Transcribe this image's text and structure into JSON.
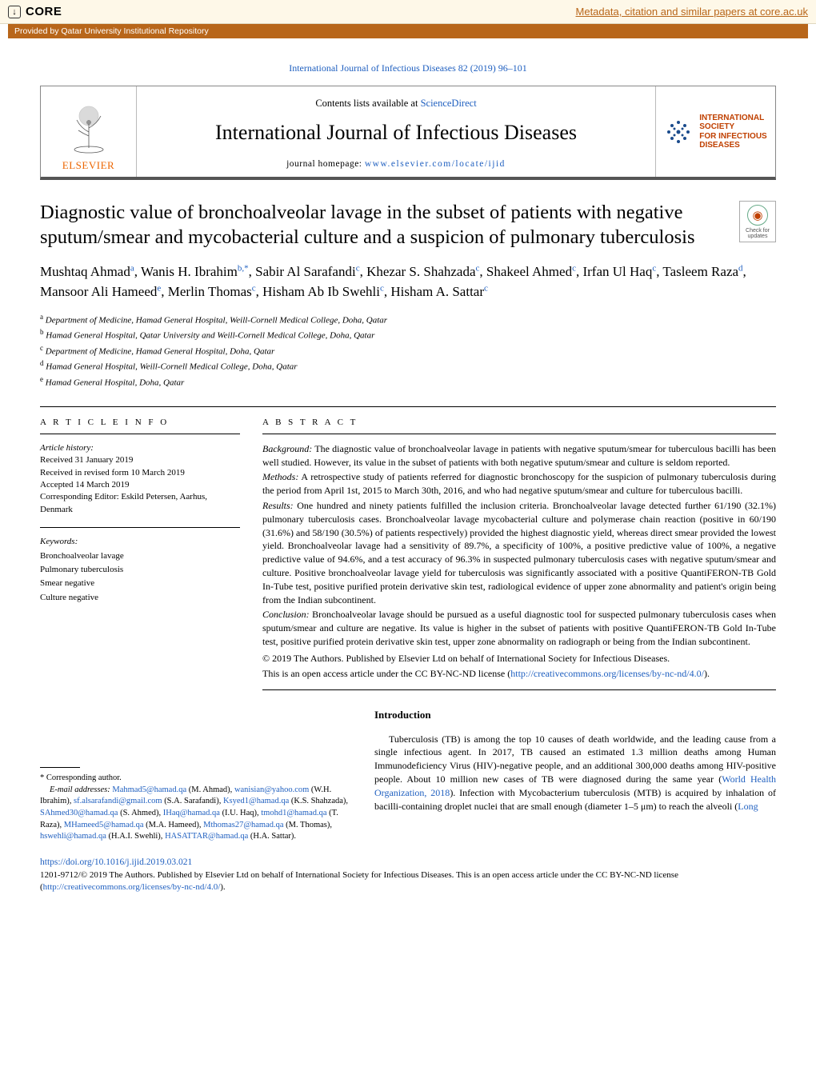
{
  "core": {
    "brand": "CORE",
    "link_text": "Metadata, citation and similar papers at core.ac.uk",
    "provided_by": "Provided by Qatar University Institutional Repository"
  },
  "journal_ref": "International Journal of Infectious Diseases 82 (2019) 96–101",
  "masthead": {
    "contents_prefix": "Contents lists available at ",
    "sciencedirect": "ScienceDirect",
    "journal_title": "International Journal of Infectious Diseases",
    "homepage_prefix": "journal homepage: ",
    "homepage_url": "www.elsevier.com/locate/ijid",
    "elsevier": "ELSEVIER",
    "society_lines": [
      "INTERNATIONAL",
      "SOCIETY",
      "FOR INFECTIOUS",
      "DISEASES"
    ]
  },
  "updates_badge": {
    "line1": "Check for",
    "line2": "updates"
  },
  "article": {
    "title": "Diagnostic value of bronchoalveolar lavage in the subset of patients with negative sputum/smear and mycobacterial culture and a suspicion of pulmonary tuberculosis",
    "authors_html": "Mushtaq Ahmad<sup>a</sup>, Wanis H. Ibrahim<sup>b,</sup><sup class='star'>*</sup>, Sabir Al Sarafandi<sup>c</sup>, Khezar S. Shahzada<sup>c</sup>, Shakeel Ahmed<sup>c</sup>, Irfan Ul Haq<sup>c</sup>, Tasleem Raza<sup>d</sup>, Mansoor Ali Hameed<sup>e</sup>, Merlin Thomas<sup>c</sup>, Hisham Ab Ib Swehli<sup>c</sup>, Hisham A. Sattar<sup>c</sup>",
    "affiliations": [
      {
        "sup": "a",
        "text": "Department of Medicine, Hamad General Hospital, Weill-Cornell Medical College, Doha, Qatar"
      },
      {
        "sup": "b",
        "text": "Hamad General Hospital, Qatar University and Weill-Cornell Medical College, Doha, Qatar"
      },
      {
        "sup": "c",
        "text": "Department of Medicine, Hamad General Hospital, Doha, Qatar"
      },
      {
        "sup": "d",
        "text": "Hamad General Hospital, Weill-Cornell Medical College, Doha, Qatar"
      },
      {
        "sup": "e",
        "text": "Hamad General Hospital, Doha, Qatar"
      }
    ]
  },
  "info": {
    "head": "A R T I C L E   I N F O",
    "history_label": "Article history:",
    "history": [
      "Received 31 January 2019",
      "Received in revised form 10 March 2019",
      "Accepted 14 March 2019",
      "Corresponding Editor: Eskild Petersen, Aarhus, Denmark"
    ],
    "keywords_label": "Keywords:",
    "keywords": [
      "Bronchoalveolar lavage",
      "Pulmonary tuberculosis",
      "Smear negative",
      "Culture negative"
    ]
  },
  "abstract": {
    "head": "A B S T R A C T",
    "background_label": "Background:",
    "background": " The diagnostic value of bronchoalveolar lavage in patients with negative sputum/smear for tuberculous bacilli has been well studied. However, its value in the subset of patients with both negative sputum/smear and culture is seldom reported.",
    "methods_label": "Methods:",
    "methods": " A retrospective study of patients referred for diagnostic bronchoscopy for the suspicion of pulmonary tuberculosis during the period from April 1st, 2015 to March 30th, 2016, and who had negative sputum/smear and culture for tuberculous bacilli.",
    "results_label": "Results:",
    "results": " One hundred and ninety patients fulfilled the inclusion criteria. Bronchoalveolar lavage detected further 61/190 (32.1%) pulmonary tuberculosis cases. Bronchoalveolar lavage mycobacterial culture and polymerase chain reaction (positive in 60/190 (31.6%) and 58/190 (30.5%) of patients respectively) provided the highest diagnostic yield, whereas direct smear provided the lowest yield. Bronchoalveolar lavage had a sensitivity of 89.7%, a specificity of 100%, a positive predictive value of 100%, a negative predictive value of 94.6%, and a test accuracy of 96.3% in suspected pulmonary tuberculosis cases with negative sputum/smear and culture. Positive bronchoalveolar lavage yield for tuberculosis was significantly associated with a positive QuantiFERON-TB Gold In-Tube test, positive purified protein derivative skin test, radiological evidence of upper zone abnormality and patient's origin being from the Indian subcontinent.",
    "conclusion_label": "Conclusion:",
    "conclusion": " Bronchoalveolar lavage should be pursued as a useful diagnostic tool for suspected pulmonary tuberculosis cases when sputum/smear and culture are negative. Its value is higher in the subset of patients with positive QuantiFERON-TB Gold In-Tube test, positive purified protein derivative skin test, upper zone abnormality on radiograph or being from the Indian subcontinent.",
    "copyright": "© 2019 The Authors. Published by Elsevier Ltd on behalf of International Society for Infectious Diseases.",
    "license_prefix": "This is an open access article under the CC BY-NC-ND license (",
    "license_url": "http://creativecommons.org/licenses/by-nc-nd/4.0/",
    "license_suffix": ")."
  },
  "intro": {
    "heading": "Introduction",
    "para_pre": "Tuberculosis (TB) is among the top 10 causes of death worldwide, and the leading cause from a single infectious agent. In 2017, TB caused an estimated 1.3 million deaths among Human Immunodeficiency Virus (HIV)-negative people, and an additional 300,000 deaths among HIV-positive people. About 10 million new cases of TB were diagnosed during the same year (",
    "who_link": "World Health Organization, 2018",
    "para_mid": "). Infection with Mycobacterium tuberculosis (MTB) is acquired by inhalation of bacilli-containing droplet nuclei that are small enough (diameter 1–5 μm) to reach the alveoli (",
    "long_link": "Long"
  },
  "correspondence": {
    "star_label": "* Corresponding author.",
    "emails_label": "E-mail addresses:",
    "pairs": [
      {
        "email": "Mahmad5@hamad.qa",
        "who": " (M. Ahmad), "
      },
      {
        "email": "wanisian@yahoo.com",
        "who": " (W.H. Ibrahim), "
      },
      {
        "email": "sf.alsarafandi@gmail.com",
        "who": " (S.A. Sarafandi), "
      },
      {
        "email": "Ksyed1@hamad.qa",
        "who": " (K.S. Shahzada), "
      },
      {
        "email": "SAhmed30@hamad.qa",
        "who": " (S. Ahmed), "
      },
      {
        "email": "IHaq@hamad.qa",
        "who": " (I.U. Haq), "
      },
      {
        "email": "tmohd1@hamad.qa",
        "who": " (T. Raza), "
      },
      {
        "email": "MHameed5@hamad.qa",
        "who": " (M.A. Hameed), "
      },
      {
        "email": "Mthomas27@hamad.qa",
        "who": " (M. Thomas), "
      },
      {
        "email": "hswehli@hamad.qa",
        "who": " (H.A.I. Swehli), "
      },
      {
        "email": "HASATTAR@hamad.qa",
        "who": " (H.A. Sattar)."
      }
    ]
  },
  "footer": {
    "doi": "https://doi.org/10.1016/j.ijid.2019.03.021",
    "issn_line_pre": "1201-9712/© 2019 The Authors. Published by Elsevier Ltd on behalf of International Society for Infectious Diseases. This is an open access article under the CC BY-NC-ND license (",
    "license_url": "http://creativecommons.org/licenses/by-nc-nd/4.0/",
    "issn_line_post": ")."
  },
  "colors": {
    "link": "#2060c0",
    "core_accent": "#b8661a",
    "elsevier_orange": "#ec6500",
    "society_red": "#c04000",
    "core_bg": "#fef8e8"
  }
}
